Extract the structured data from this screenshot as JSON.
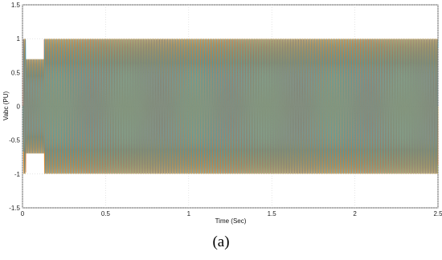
{
  "chart_data": {
    "type": "line",
    "title": "",
    "xlabel": "Time (Sec)",
    "ylabel": "Vabc (PU)",
    "xlim": [
      0,
      2.5
    ],
    "ylim": [
      -1.5,
      1.5
    ],
    "x_ticks": [
      "0",
      "0.5",
      "1",
      "1.5",
      "2",
      "2.5"
    ],
    "y_ticks": [
      "1.5",
      "1",
      "0.5",
      "0",
      "-0.5",
      "-1",
      "-1.5"
    ],
    "grid": true,
    "series": [
      {
        "color": "#e0a020",
        "amplitude": 1.0,
        "phase_deg": 0
      },
      {
        "color": "#d95319",
        "amplitude": 1.0,
        "phase_deg": -120
      },
      {
        "color": "#22a0c0",
        "amplitude": 1.0,
        "phase_deg": 120
      }
    ],
    "events": [
      {
        "t_start": 0.02,
        "t_end": 0.13,
        "description": "voltage sag",
        "amplitude": 0.7
      }
    ]
  },
  "caption": "(a)"
}
